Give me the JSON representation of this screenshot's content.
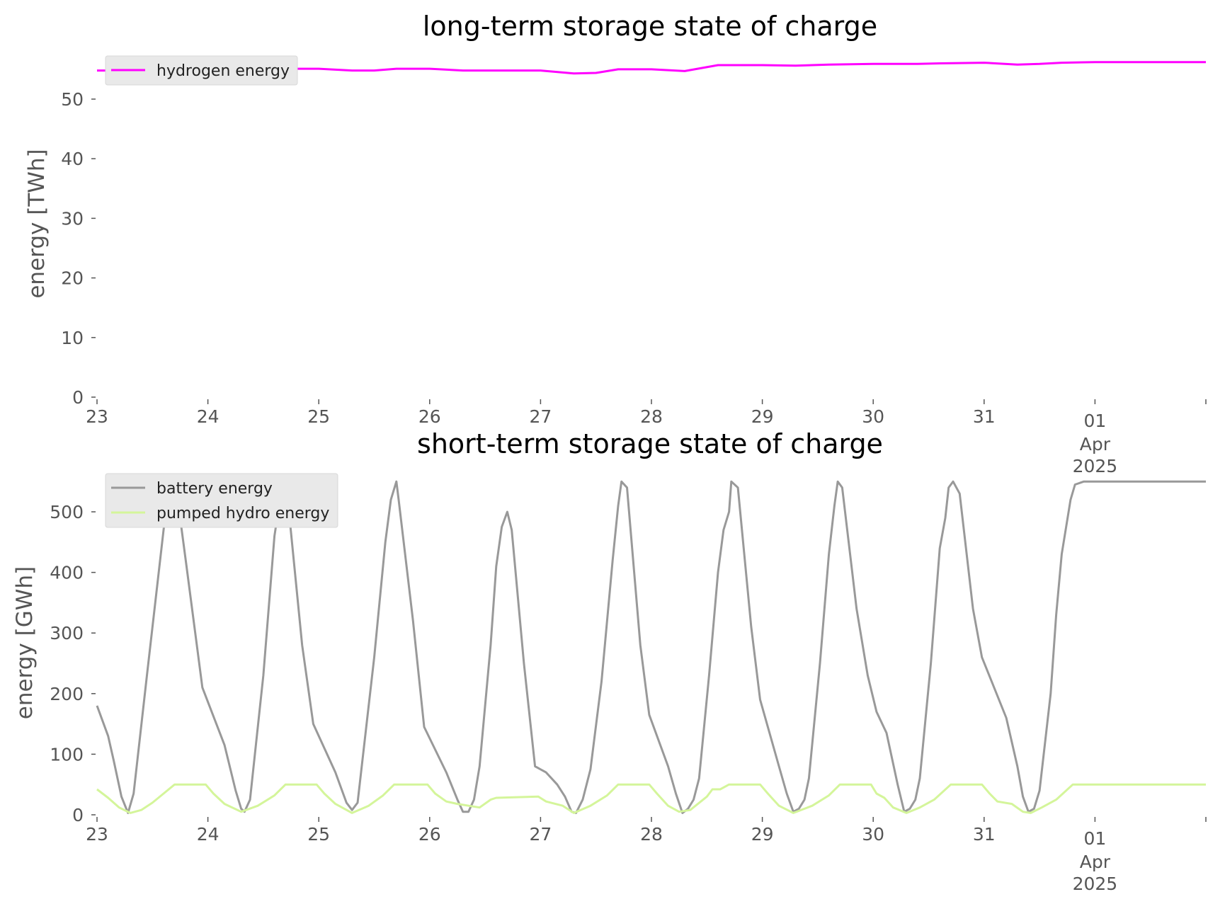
{
  "chart_data": [
    {
      "type": "line",
      "title": "long-term storage state of charge",
      "ylabel": "energy [TWh]",
      "xlabel": "",
      "x_range": [
        "2025-03-23",
        "2025-04-02"
      ],
      "ylim": [
        0,
        56
      ],
      "yticks": [
        0,
        10,
        20,
        30,
        40,
        50
      ],
      "xticks": [
        {
          "label": "23",
          "day": 0
        },
        {
          "label": "24",
          "day": 1
        },
        {
          "label": "25",
          "day": 2
        },
        {
          "label": "26",
          "day": 3
        },
        {
          "label": "27",
          "day": 4
        },
        {
          "label": "28",
          "day": 5
        },
        {
          "label": "29",
          "day": 6
        },
        {
          "label": "30",
          "day": 7
        },
        {
          "label": "31",
          "day": 8
        },
        {
          "label": "01",
          "label2": "Apr",
          "label3": "2025",
          "day": 9
        }
      ],
      "grid": false,
      "legend": "top-left",
      "series": [
        {
          "name": "hydrogen energy",
          "color": "#ff00ff",
          "points": [
            [
              0,
              54.8
            ],
            [
              0.5,
              54.8
            ],
            [
              1,
              55.0
            ],
            [
              1.5,
              55.1
            ],
            [
              2,
              55.1
            ],
            [
              2.3,
              54.8
            ],
            [
              2.5,
              54.8
            ],
            [
              2.7,
              55.1
            ],
            [
              3,
              55.1
            ],
            [
              3.3,
              54.8
            ],
            [
              3.6,
              54.8
            ],
            [
              4,
              54.8
            ],
            [
              4.3,
              54.3
            ],
            [
              4.5,
              54.4
            ],
            [
              4.7,
              55.0
            ],
            [
              5,
              55.0
            ],
            [
              5.3,
              54.7
            ],
            [
              5.6,
              55.7
            ],
            [
              6,
              55.7
            ],
            [
              6.3,
              55.6
            ],
            [
              6.6,
              55.8
            ],
            [
              7,
              55.9
            ],
            [
              7.4,
              55.9
            ],
            [
              7.6,
              56.0
            ],
            [
              8,
              56.1
            ],
            [
              8.3,
              55.8
            ],
            [
              8.5,
              55.9
            ],
            [
              8.7,
              56.1
            ],
            [
              9,
              56.2
            ],
            [
              10,
              56.2
            ]
          ]
        }
      ]
    },
    {
      "type": "line",
      "title": "short-term storage state of charge",
      "ylabel": "energy [GWh]",
      "xlabel": "",
      "x_range": [
        "2025-03-23",
        "2025-04-02"
      ],
      "ylim": [
        0,
        560
      ],
      "yticks": [
        0,
        100,
        200,
        300,
        400,
        500
      ],
      "xticks": [
        {
          "label": "23",
          "day": 0
        },
        {
          "label": "24",
          "day": 1
        },
        {
          "label": "25",
          "day": 2
        },
        {
          "label": "26",
          "day": 3
        },
        {
          "label": "27",
          "day": 4
        },
        {
          "label": "28",
          "day": 5
        },
        {
          "label": "29",
          "day": 6
        },
        {
          "label": "30",
          "day": 7
        },
        {
          "label": "31",
          "day": 8
        },
        {
          "label": "01",
          "label2": "Apr",
          "label3": "2025",
          "day": 9
        }
      ],
      "grid": false,
      "legend": "top-left",
      "series": [
        {
          "name": "battery energy",
          "color": "#999999",
          "points": [
            [
              0,
              180
            ],
            [
              0.1,
              130
            ],
            [
              0.15,
              90
            ],
            [
              0.22,
              30
            ],
            [
              0.28,
              3
            ],
            [
              0.33,
              35
            ],
            [
              0.45,
              230
            ],
            [
              0.6,
              470
            ],
            [
              0.65,
              540
            ],
            [
              0.68,
              550
            ],
            [
              0.72,
              530
            ],
            [
              0.8,
              420
            ],
            [
              0.95,
              210
            ],
            [
              1.15,
              115
            ],
            [
              1.25,
              40
            ],
            [
              1.3,
              10
            ],
            [
              1.33,
              5
            ],
            [
              1.38,
              25
            ],
            [
              1.5,
              230
            ],
            [
              1.6,
              460
            ],
            [
              1.65,
              520
            ],
            [
              1.68,
              550
            ],
            [
              1.72,
              520
            ],
            [
              1.85,
              280
            ],
            [
              1.95,
              150
            ],
            [
              2.15,
              70
            ],
            [
              2.25,
              20
            ],
            [
              2.3,
              8
            ],
            [
              2.35,
              20
            ],
            [
              2.5,
              260
            ],
            [
              2.6,
              450
            ],
            [
              2.65,
              520
            ],
            [
              2.7,
              550
            ],
            [
              2.72,
              520
            ],
            [
              2.85,
              320
            ],
            [
              2.95,
              145
            ],
            [
              3.15,
              70
            ],
            [
              3.25,
              25
            ],
            [
              3.3,
              5
            ],
            [
              3.35,
              5
            ],
            [
              3.4,
              25
            ],
            [
              3.45,
              80
            ],
            [
              3.55,
              280
            ],
            [
              3.6,
              410
            ],
            [
              3.65,
              475
            ],
            [
              3.7,
              500
            ],
            [
              3.74,
              470
            ],
            [
              3.85,
              250
            ],
            [
              3.95,
              80
            ],
            [
              4.05,
              70
            ],
            [
              4.15,
              50
            ],
            [
              4.22,
              30
            ],
            [
              4.28,
              5
            ],
            [
              4.32,
              3
            ],
            [
              4.38,
              25
            ],
            [
              4.45,
              75
            ],
            [
              4.55,
              220
            ],
            [
              4.65,
              420
            ],
            [
              4.7,
              510
            ],
            [
              4.73,
              550
            ],
            [
              4.78,
              540
            ],
            [
              4.9,
              280
            ],
            [
              4.98,
              165
            ],
            [
              5.15,
              80
            ],
            [
              5.22,
              35
            ],
            [
              5.28,
              3
            ],
            [
              5.33,
              10
            ],
            [
              5.38,
              25
            ],
            [
              5.43,
              60
            ],
            [
              5.52,
              230
            ],
            [
              5.6,
              400
            ],
            [
              5.65,
              470
            ],
            [
              5.7,
              500
            ],
            [
              5.72,
              550
            ],
            [
              5.78,
              540
            ],
            [
              5.9,
              310
            ],
            [
              5.98,
              190
            ],
            [
              6.15,
              80
            ],
            [
              6.22,
              35
            ],
            [
              6.28,
              5
            ],
            [
              6.33,
              10
            ],
            [
              6.38,
              25
            ],
            [
              6.42,
              60
            ],
            [
              6.52,
              250
            ],
            [
              6.6,
              430
            ],
            [
              6.65,
              510
            ],
            [
              6.68,
              550
            ],
            [
              6.72,
              540
            ],
            [
              6.85,
              340
            ],
            [
              6.95,
              230
            ],
            [
              7.03,
              170
            ],
            [
              7.12,
              135
            ],
            [
              7.22,
              50
            ],
            [
              7.28,
              5
            ],
            [
              7.33,
              10
            ],
            [
              7.38,
              25
            ],
            [
              7.42,
              60
            ],
            [
              7.52,
              250
            ],
            [
              7.6,
              440
            ],
            [
              7.65,
              490
            ],
            [
              7.68,
              540
            ],
            [
              7.72,
              550
            ],
            [
              7.78,
              530
            ],
            [
              7.9,
              340
            ],
            [
              7.98,
              260
            ],
            [
              8.2,
              160
            ],
            [
              8.3,
              80
            ],
            [
              8.35,
              30
            ],
            [
              8.4,
              5
            ],
            [
              8.45,
              10
            ],
            [
              8.5,
              40
            ],
            [
              8.6,
              200
            ],
            [
              8.65,
              330
            ],
            [
              8.7,
              430
            ],
            [
              8.78,
              520
            ],
            [
              8.82,
              545
            ],
            [
              8.9,
              550
            ],
            [
              9.5,
              550
            ],
            [
              10,
              550
            ]
          ]
        },
        {
          "name": "pumped hydro energy",
          "color": "#d4f59a",
          "points": [
            [
              0,
              42
            ],
            [
              0.1,
              28
            ],
            [
              0.2,
              12
            ],
            [
              0.3,
              3
            ],
            [
              0.4,
              8
            ],
            [
              0.5,
              20
            ],
            [
              0.6,
              35
            ],
            [
              0.7,
              50
            ],
            [
              0.98,
              50
            ],
            [
              1.05,
              35
            ],
            [
              1.15,
              18
            ],
            [
              1.3,
              5
            ],
            [
              1.45,
              15
            ],
            [
              1.6,
              32
            ],
            [
              1.7,
              50
            ],
            [
              1.98,
              50
            ],
            [
              2.05,
              35
            ],
            [
              2.15,
              18
            ],
            [
              2.3,
              3
            ],
            [
              2.45,
              15
            ],
            [
              2.58,
              32
            ],
            [
              2.68,
              50
            ],
            [
              2.98,
              50
            ],
            [
              3.05,
              35
            ],
            [
              3.15,
              22
            ],
            [
              3.25,
              18
            ],
            [
              3.45,
              12
            ],
            [
              3.55,
              25
            ],
            [
              3.6,
              28
            ],
            [
              3.98,
              30
            ],
            [
              4.05,
              22
            ],
            [
              4.2,
              15
            ],
            [
              4.3,
              3
            ],
            [
              4.45,
              15
            ],
            [
              4.6,
              32
            ],
            [
              4.7,
              50
            ],
            [
              4.98,
              50
            ],
            [
              5.05,
              35
            ],
            [
              5.15,
              15
            ],
            [
              5.25,
              5
            ],
            [
              5.35,
              8
            ],
            [
              5.5,
              30
            ],
            [
              5.55,
              42
            ],
            [
              5.62,
              42
            ],
            [
              5.7,
              50
            ],
            [
              5.98,
              50
            ],
            [
              6.05,
              35
            ],
            [
              6.15,
              15
            ],
            [
              6.28,
              3
            ],
            [
              6.45,
              15
            ],
            [
              6.6,
              32
            ],
            [
              6.7,
              50
            ],
            [
              6.98,
              50
            ],
            [
              7.03,
              35
            ],
            [
              7.1,
              28
            ],
            [
              7.18,
              12
            ],
            [
              7.3,
              3
            ],
            [
              7.42,
              12
            ],
            [
              7.55,
              25
            ],
            [
              7.7,
              50
            ],
            [
              7.98,
              50
            ],
            [
              8.05,
              35
            ],
            [
              8.12,
              22
            ],
            [
              8.25,
              18
            ],
            [
              8.35,
              5
            ],
            [
              8.42,
              3
            ],
            [
              8.52,
              12
            ],
            [
              8.65,
              25
            ],
            [
              8.8,
              50
            ],
            [
              10,
              50
            ]
          ]
        }
      ]
    }
  ]
}
